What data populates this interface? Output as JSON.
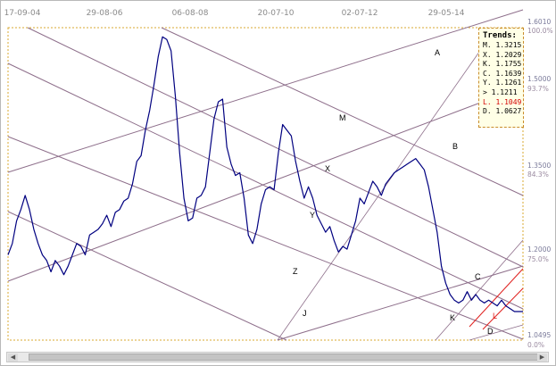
{
  "chart_data": {
    "type": "line",
    "x_tick_labels": [
      "17-09-04",
      "29-08-06",
      "06-08-08",
      "20-07-10",
      "02-07-12",
      "29-05-14"
    ],
    "y_ticks": [
      {
        "value": "1.6010",
        "pct": "100.0%"
      },
      {
        "value": "1.5000",
        "pct": "93.7%"
      },
      {
        "value": "1.3500",
        "pct": "84.3%"
      },
      {
        "value": "1.2000",
        "pct": "75.0%"
      },
      {
        "value": "1.0495",
        "pct": "0.0%"
      }
    ],
    "ylim": [
      1.0495,
      1.601
    ],
    "series": [
      {
        "color": "#000080",
        "x": [
          0,
          5,
          10,
          15,
          20,
          25,
          30,
          35,
          40,
          45,
          50,
          55,
          60,
          65,
          70,
          75,
          80,
          85,
          90,
          95,
          100,
          105,
          110,
          115,
          120,
          125,
          130,
          135,
          140,
          145,
          150,
          155,
          160,
          165,
          170,
          175,
          180,
          185,
          190,
          195,
          200,
          205,
          210,
          215,
          220,
          225,
          230,
          235,
          240,
          245,
          250,
          255,
          260,
          265,
          270,
          275,
          280,
          285,
          290,
          295,
          300,
          305,
          310,
          315,
          320,
          325,
          330,
          335,
          340,
          345,
          350,
          355,
          360,
          365,
          370,
          375,
          380,
          385,
          390,
          395,
          400,
          405,
          410,
          415,
          420,
          425,
          430,
          435,
          440,
          445,
          450,
          455,
          460,
          465,
          470,
          475,
          480,
          485,
          490,
          495,
          500,
          505,
          510,
          515,
          520,
          525,
          530,
          535,
          540,
          545,
          550,
          555,
          560,
          565,
          570,
          575,
          580,
          585,
          590,
          595,
          600
        ],
        "values": [
          1.2,
          1.22,
          1.26,
          1.28,
          1.305,
          1.28,
          1.245,
          1.22,
          1.2,
          1.19,
          1.17,
          1.19,
          1.18,
          1.165,
          1.18,
          1.2,
          1.22,
          1.215,
          1.2,
          1.235,
          1.24,
          1.245,
          1.255,
          1.27,
          1.25,
          1.275,
          1.28,
          1.295,
          1.3,
          1.325,
          1.365,
          1.375,
          1.42,
          1.455,
          1.5,
          1.55,
          1.585,
          1.58,
          1.56,
          1.48,
          1.38,
          1.3,
          1.26,
          1.265,
          1.3,
          1.305,
          1.32,
          1.38,
          1.44,
          1.47,
          1.475,
          1.39,
          1.36,
          1.34,
          1.345,
          1.3,
          1.235,
          1.22,
          1.245,
          1.29,
          1.315,
          1.32,
          1.315,
          1.38,
          1.43,
          1.42,
          1.41,
          1.365,
          1.33,
          1.3,
          1.32,
          1.3,
          1.27,
          1.255,
          1.24,
          1.25,
          1.225,
          1.205,
          1.215,
          1.21,
          1.235,
          1.26,
          1.3,
          1.29,
          1.31,
          1.33,
          1.32,
          1.305,
          1.325,
          1.335,
          1.345,
          1.35,
          1.355,
          1.36,
          1.365,
          1.37,
          1.36,
          1.35,
          1.32,
          1.28,
          1.24,
          1.18,
          1.15,
          1.13,
          1.12,
          1.115,
          1.12,
          1.135,
          1.12,
          1.13,
          1.12,
          1.115,
          1.12,
          1.115,
          1.11,
          1.12,
          1.11,
          1.105,
          1.1,
          1.1,
          1.1
        ]
      }
    ],
    "trend_lines": [
      {
        "label": "A"
      },
      {
        "label": "B"
      },
      {
        "label": "C"
      },
      {
        "label": "D"
      },
      {
        "label": "J"
      },
      {
        "label": "K"
      },
      {
        "label": "L"
      },
      {
        "label": "M"
      },
      {
        "label": "X"
      },
      {
        "label": "Y"
      },
      {
        "label": "Z"
      }
    ],
    "legend": {
      "title": "Trends:",
      "placement": "top-right",
      "entries": [
        {
          "text": "M. 1.3215",
          "color": "#000000"
        },
        {
          "text": "X. 1.2029",
          "color": "#000000"
        },
        {
          "text": "K. 1.1755",
          "color": "#000000"
        },
        {
          "text": "C. 1.1639",
          "color": "#000000"
        },
        {
          "text": "Y. 1.1261",
          "color": "#000000"
        },
        {
          "text": "> 1.1211",
          "color": "#000000"
        },
        {
          "text": "L. 1.1049",
          "color": "#d40000"
        },
        {
          "text": "D. 1.0627",
          "color": "#000000"
        }
      ]
    },
    "colors": {
      "price": "#000080",
      "trend": "#8e6f8b",
      "red_channel": "#e0201e",
      "border": "#d8a830"
    }
  }
}
